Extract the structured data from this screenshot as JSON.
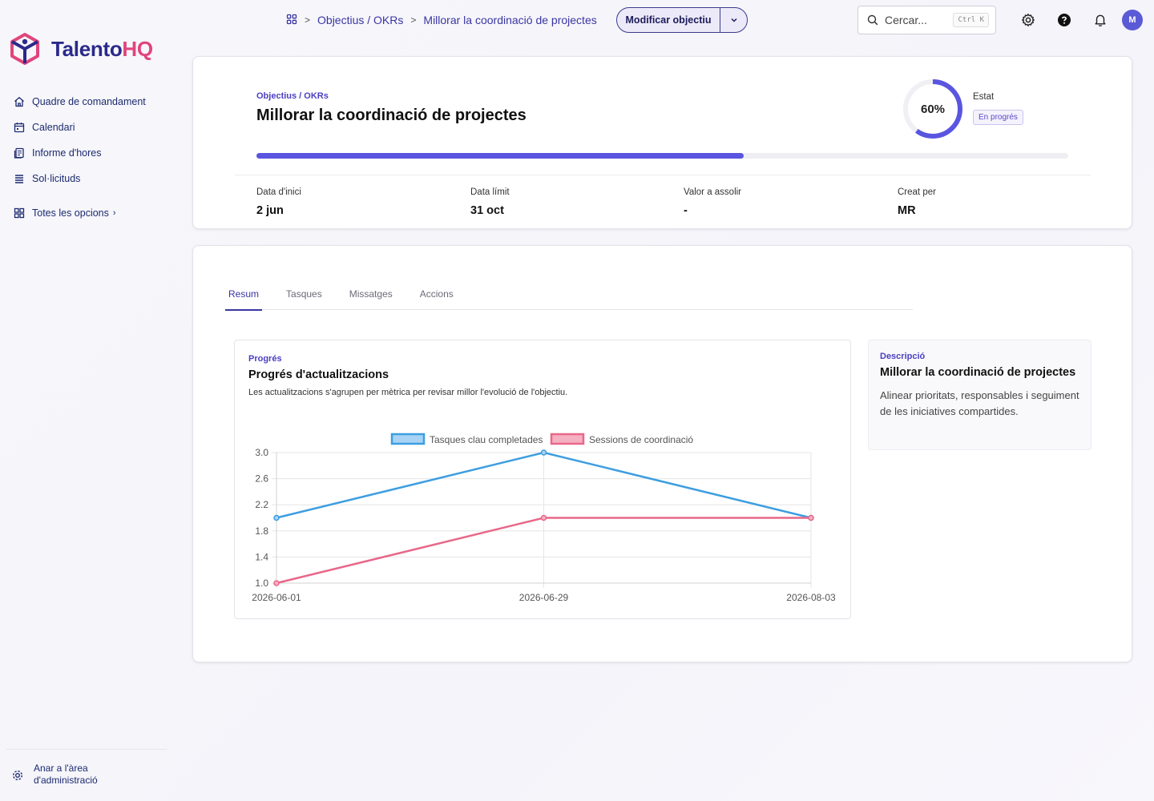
{
  "brand": {
    "name_main": "Talento",
    "name_accent": "HQ"
  },
  "sidebar": {
    "items": [
      {
        "label": "Quadre de comandament",
        "icon": "home-icon"
      },
      {
        "label": "Calendari",
        "icon": "calendar-icon"
      },
      {
        "label": "Informe d'hores",
        "icon": "report-icon"
      },
      {
        "label": "Sol·licituds",
        "icon": "list-icon"
      }
    ],
    "all_options": "Totes les opcions",
    "admin_line1": "Anar a l'àrea",
    "admin_line2": "d'administració"
  },
  "topbar": {
    "breadcrumb": [
      "Objectius / OKRs",
      "Millorar la coordinació de projectes"
    ],
    "edit_button": "Modificar objectiu",
    "search_placeholder": "Cercar...",
    "search_shortcut": "Ctrl K",
    "avatar_initial": "M"
  },
  "objective": {
    "eyebrow": "Objectius / OKRs",
    "title": "Millorar la coordinació de projectes",
    "progress_percent": 60,
    "progress_label": "60%",
    "status_label": "Estat",
    "status_value": "En progrés",
    "meta": [
      {
        "label": "Data d'inici",
        "value": "2 jun"
      },
      {
        "label": "Data límit",
        "value": "31 oct"
      },
      {
        "label": "Valor a assolir",
        "value": "-"
      },
      {
        "label": "Creat per",
        "value": "MR"
      }
    ]
  },
  "tabs": [
    {
      "label": "Resum",
      "active": true
    },
    {
      "label": "Tasques",
      "active": false
    },
    {
      "label": "Missatges",
      "active": false
    },
    {
      "label": "Accions",
      "active": false
    }
  ],
  "chart_card": {
    "eyebrow": "Progrés",
    "title": "Progrés d'actualitzacions",
    "subtitle": "Les actualitzacions s'agrupen per mètrica per revisar millor l'evolució de l'objectiu."
  },
  "description": {
    "eyebrow": "Descripció",
    "title": "Millorar la coordinació de projectes",
    "body": "Alinear prioritats, responsables i seguiment de les iniciatives compartides."
  },
  "chart_data": {
    "type": "line",
    "x": [
      "2026-06-01",
      "2026-06-29",
      "2026-08-03"
    ],
    "series": [
      {
        "name": "Tasques clau completades",
        "values": [
          2,
          3,
          2
        ],
        "color": "#3d9ee0",
        "fill": "#a8d3f4"
      },
      {
        "name": "Sessions de coordinació",
        "values": [
          1,
          2,
          2
        ],
        "color": "#e8688a",
        "fill": "#f5b0c1"
      }
    ],
    "ylim": [
      1.0,
      3.0
    ],
    "yticks": [
      "1.0",
      "1.4",
      "1.8",
      "2.2",
      "2.6",
      "3.0"
    ],
    "grid": true,
    "legend": "top"
  },
  "colors": {
    "accent": "#5a55e0",
    "brand_dark": "#2b2a8a",
    "brand_pink": "#e0457b"
  }
}
